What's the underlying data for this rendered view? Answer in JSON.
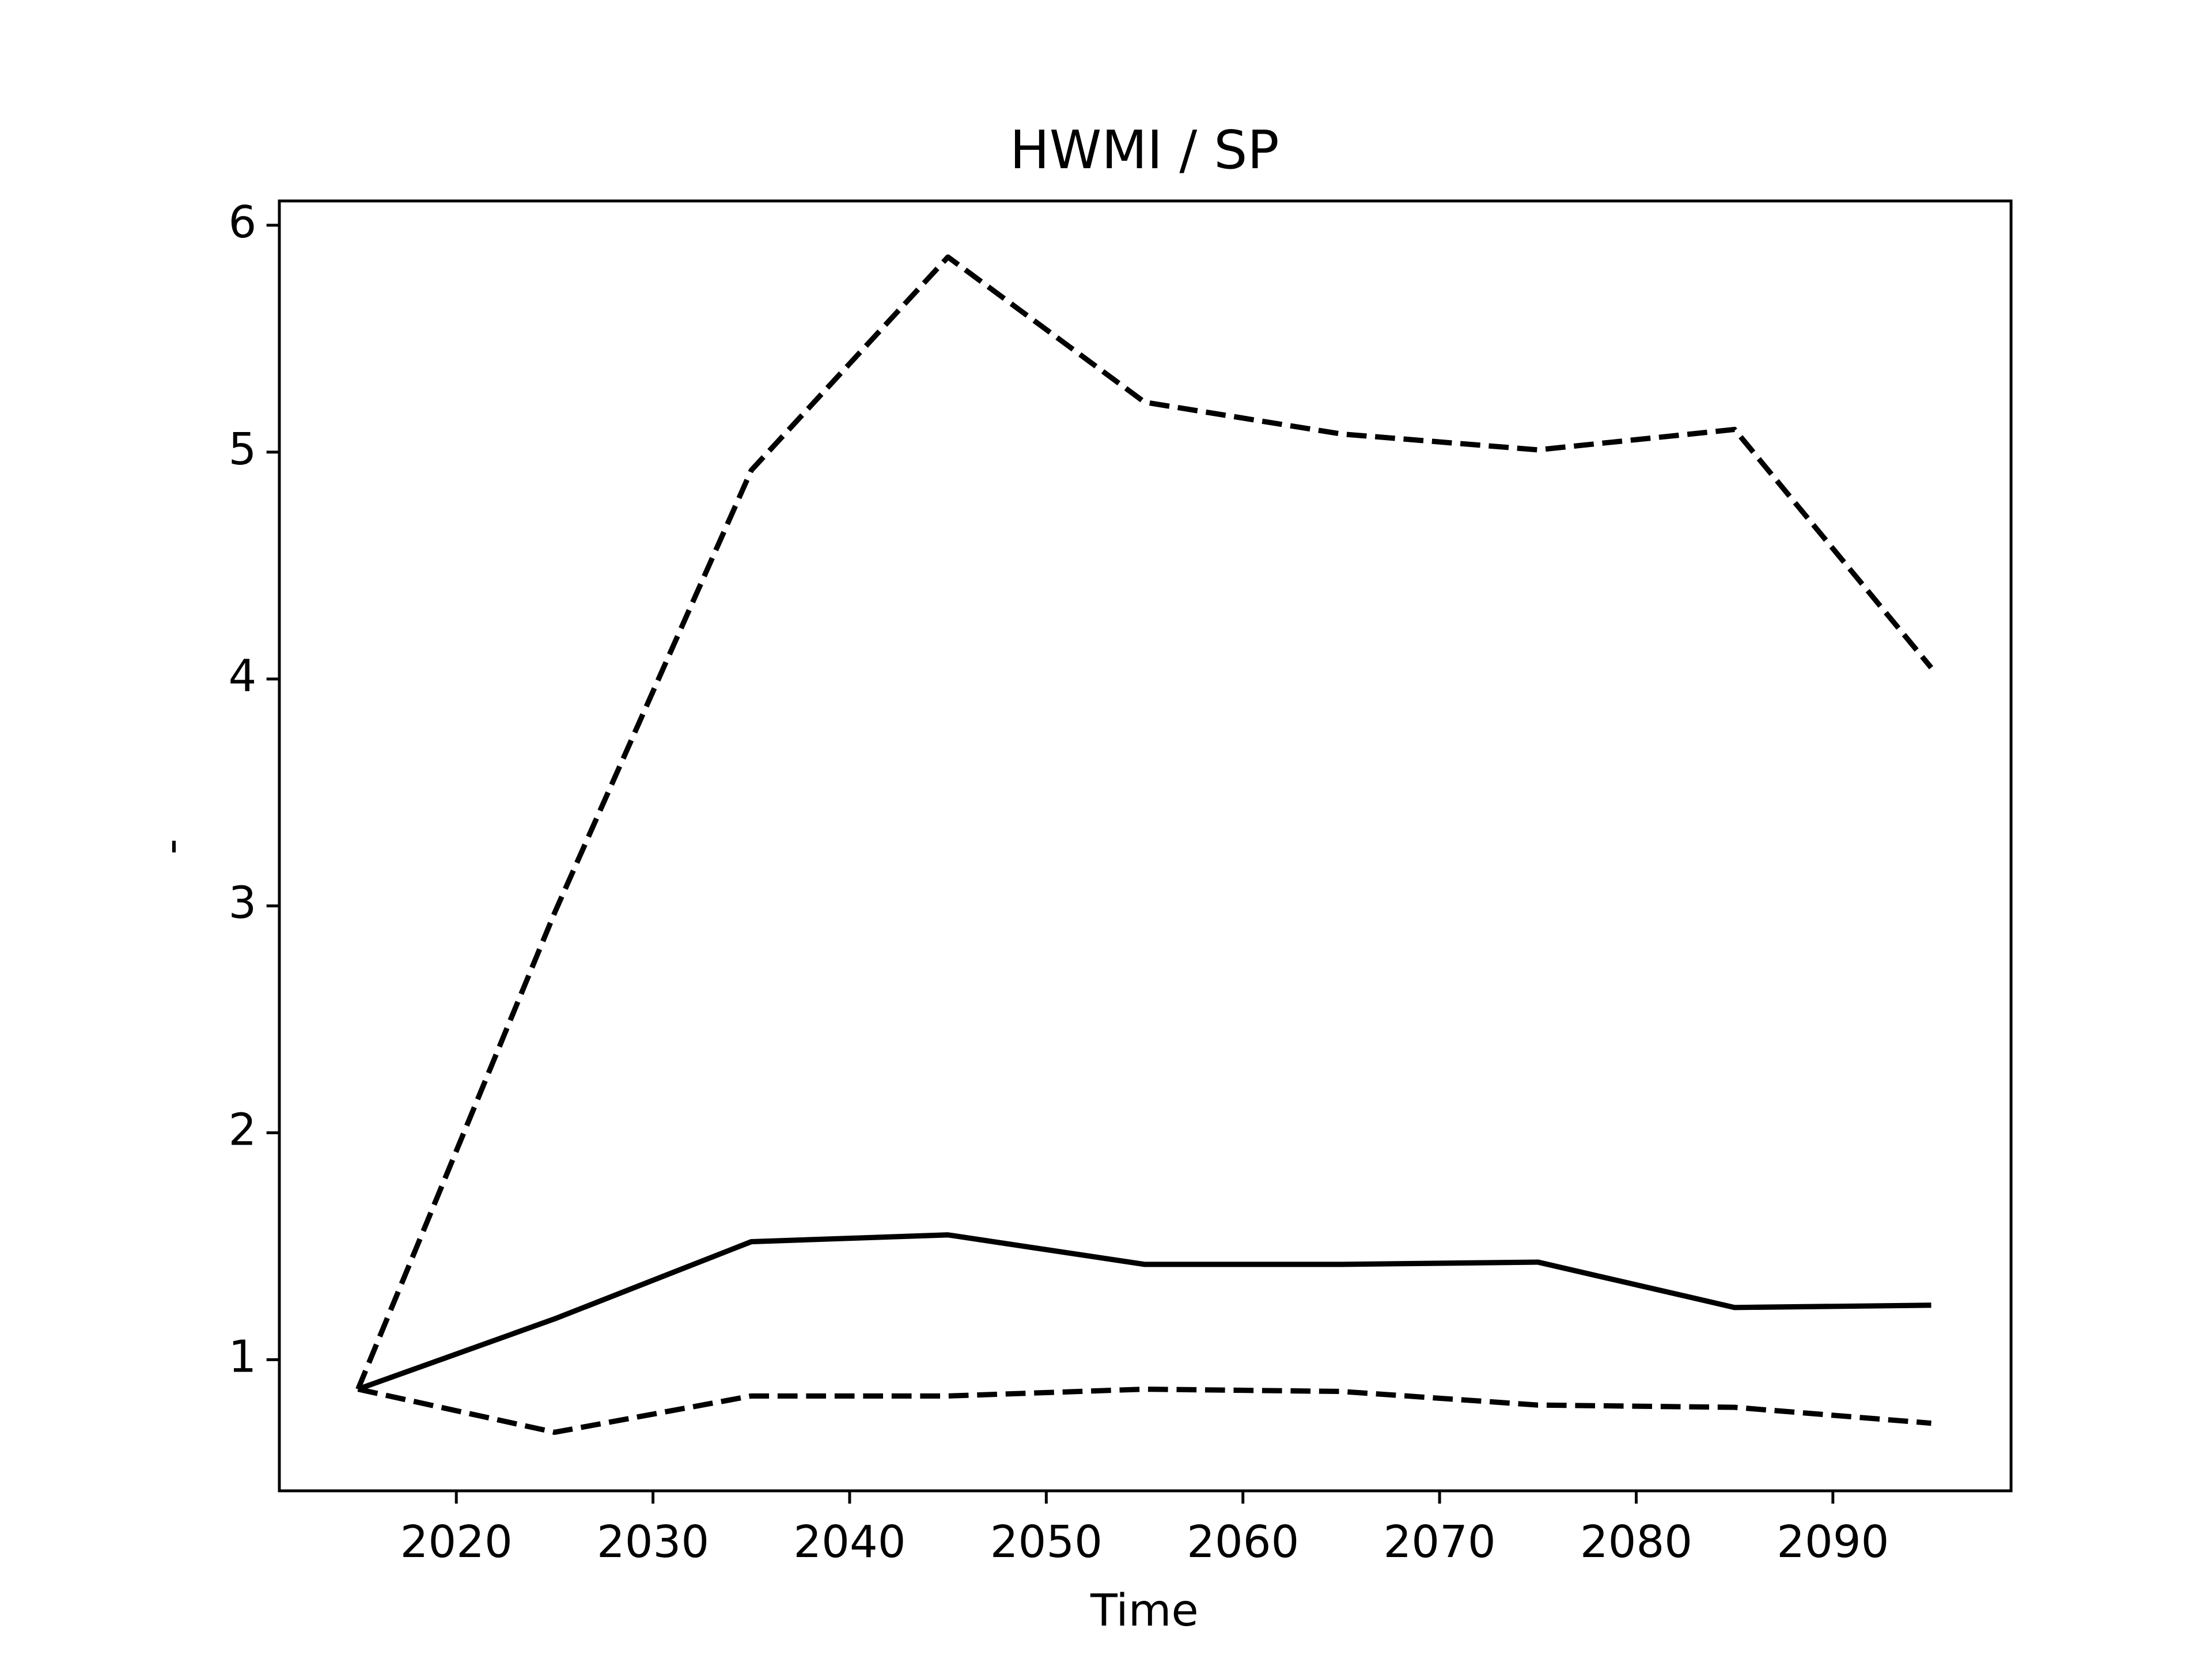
{
  "chart_data": {
    "type": "line",
    "title": "HWMI / SP",
    "xlabel": "Time",
    "ylabel": "-",
    "x": [
      2015,
      2025,
      2035,
      2045,
      2055,
      2065,
      2075,
      2085,
      2095
    ],
    "series": [
      {
        "color": "#000000",
        "linestyle": "solid",
        "values": [
          0.87,
          1.18,
          1.52,
          1.55,
          1.42,
          1.42,
          1.43,
          1.23,
          1.24
        ]
      },
      {
        "color": "#000000",
        "linestyle": "dashed",
        "values": [
          0.87,
          2.97,
          4.92,
          5.86,
          5.22,
          5.08,
          5.01,
          5.1,
          4.05
        ]
      },
      {
        "color": "#000000",
        "linestyle": "dashed",
        "values": [
          0.87,
          0.68,
          0.84,
          0.84,
          0.87,
          0.86,
          0.8,
          0.79,
          0.72
        ]
      }
    ],
    "xlim": [
      2011,
      2099.06
    ],
    "xticks": [
      2020,
      2030,
      2040,
      2050,
      2060,
      2070,
      2080,
      2090
    ],
    "ylim": [
      0.422,
      6.107
    ],
    "yticks": [
      1,
      2,
      3,
      4,
      5,
      6
    ],
    "grid": false
  }
}
